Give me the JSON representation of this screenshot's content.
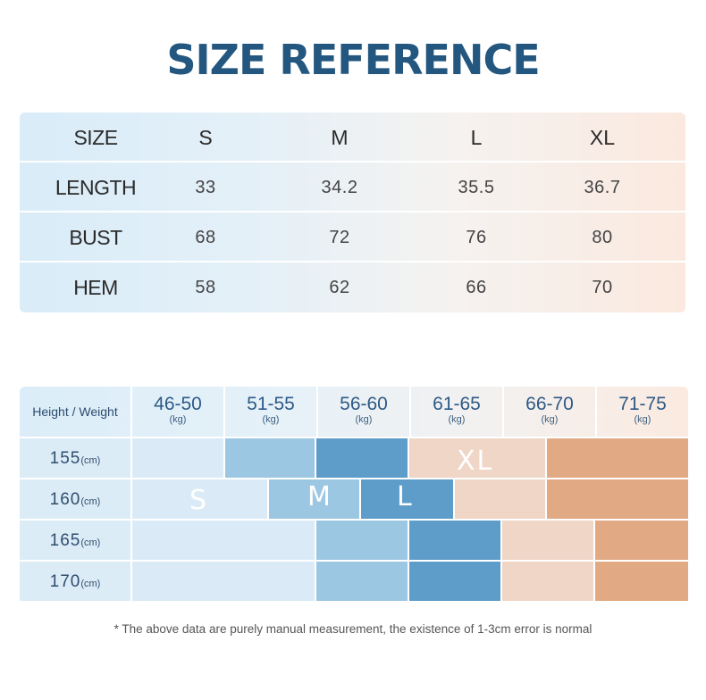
{
  "title": "SIZE REFERENCE",
  "size_table": {
    "header": {
      "label": "SIZE",
      "sizes": [
        "S",
        "M",
        "L",
        "XL"
      ]
    },
    "rows": [
      {
        "label": "LENGTH",
        "values": [
          "33",
          "34.2",
          "35.5",
          "36.7"
        ]
      },
      {
        "label": "BUST",
        "values": [
          "68",
          "72",
          "76",
          "80"
        ]
      },
      {
        "label": "HEM",
        "values": [
          "58",
          "62",
          "66",
          "70"
        ]
      }
    ]
  },
  "chart": {
    "corner_label": "Height / Weight",
    "weight_ranges": [
      "46-50",
      "51-55",
      "56-60",
      "61-65",
      "66-70",
      "71-75"
    ],
    "weight_unit": "(kg)",
    "height_unit": "(cm)",
    "heights": [
      "155",
      "160",
      "165",
      "170"
    ],
    "size_tags": {
      "s": "S",
      "m": "M",
      "l": "L",
      "xl": "XL"
    },
    "colors": {
      "S": "#daebf7",
      "M": "#9cc7e2",
      "L": "#5e9dc9",
      "XL": "#efd6c7",
      "XXL": "#e1aa84"
    }
  },
  "note": "* The above data are purely manual measurement, the existence of 1-3cm error is normal"
}
